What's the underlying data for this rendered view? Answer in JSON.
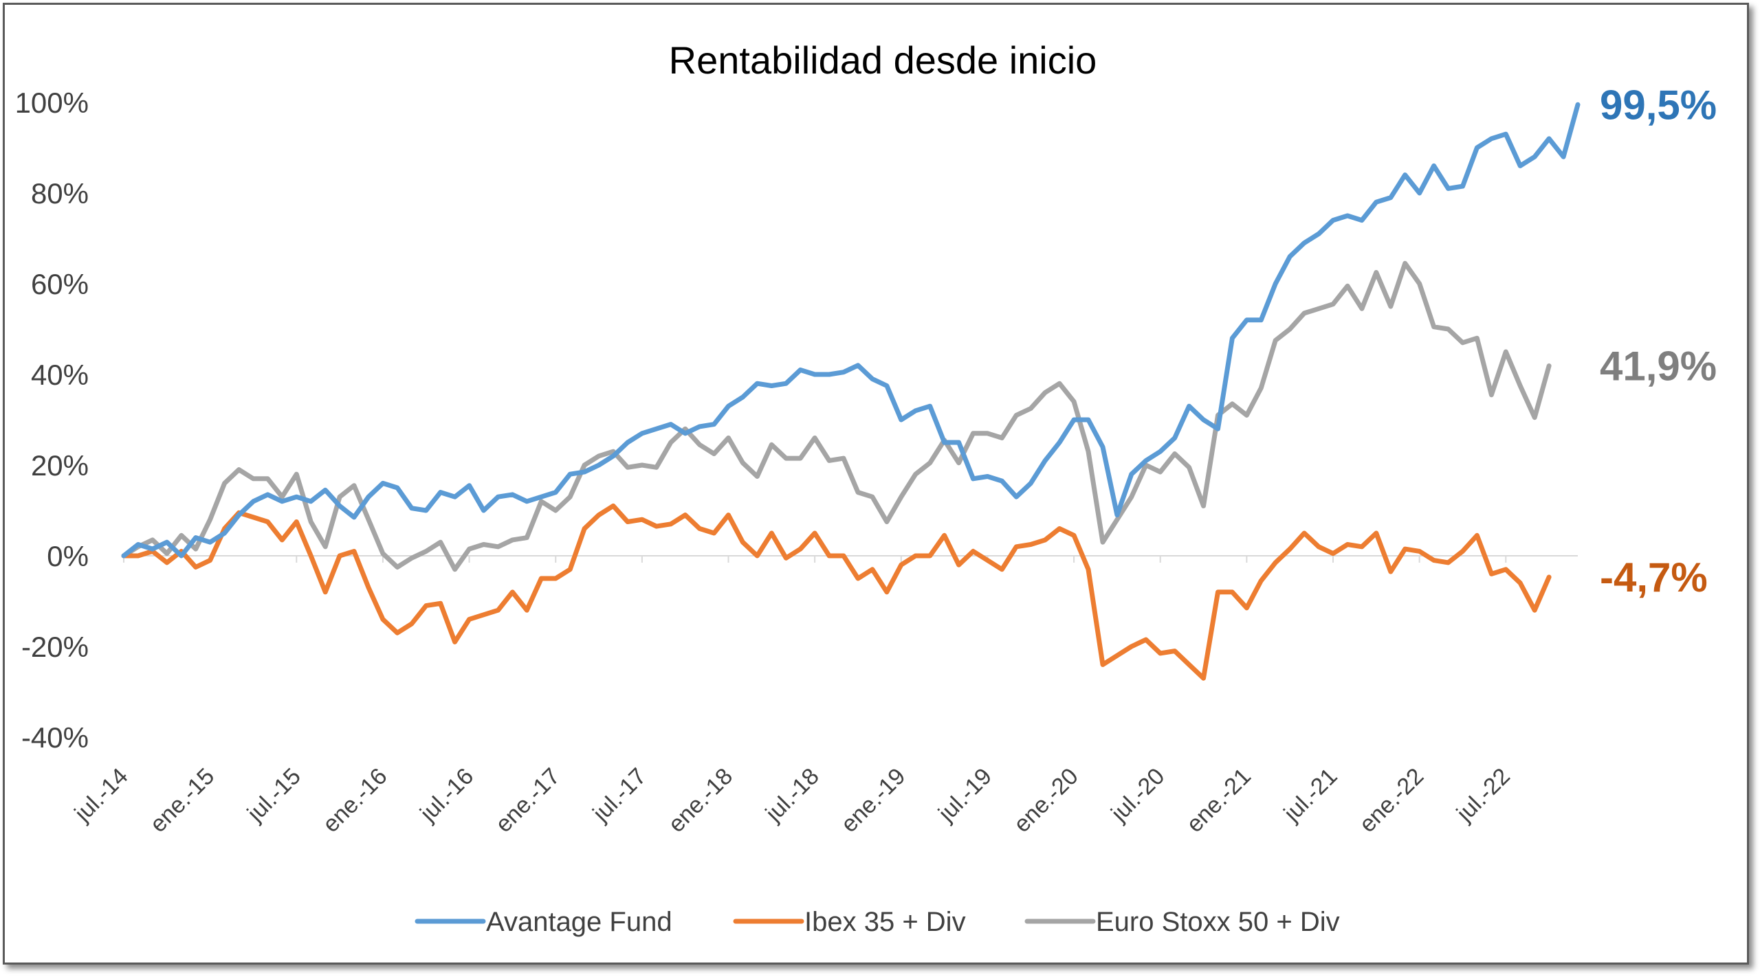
{
  "chart_data": {
    "type": "line",
    "title": "Rentabilidad desde inicio",
    "xlabel": "",
    "ylabel": "",
    "ylim": [
      -40,
      100
    ],
    "yticks": [
      100,
      80,
      60,
      40,
      20,
      0,
      -20,
      -40
    ],
    "ytick_labels": [
      "100%",
      "80%",
      "60%",
      "40%",
      "20%",
      "0%",
      "-20%",
      "-40%"
    ],
    "x_tick_labels": [
      "jul.-14",
      "ene.-15",
      "jul.-15",
      "ene.-16",
      "jul.-16",
      "ene.-17",
      "jul.-17",
      "ene.-18",
      "jul.-18",
      "ene.-19",
      "jul.-19",
      "ene.-20",
      "jul.-20",
      "ene.-21",
      "jul.-21",
      "ene.-22",
      "jul.-22"
    ],
    "x_start": "jul.-14",
    "x_end": "oct.-22",
    "grid": false,
    "zero_line": true,
    "legend_position": "bottom",
    "series": [
      {
        "name": "Avantage Fund",
        "color": "#5b9bd5",
        "end_label": "99,5%",
        "end_label_color": "#2e75b6",
        "values": [
          0,
          2.5,
          1.5,
          3,
          0,
          4,
          3,
          5,
          9,
          12,
          13.5,
          12,
          13,
          12,
          14.5,
          11,
          8.5,
          13,
          16,
          15,
          10.5,
          10,
          14,
          13,
          15.5,
          10,
          13,
          13.5,
          12,
          13,
          14,
          18,
          18.5,
          20,
          22,
          25,
          27,
          28,
          29,
          27,
          28.5,
          29,
          33,
          35,
          38,
          37.5,
          38,
          41,
          40,
          40,
          40.5,
          42,
          39,
          37.5,
          30,
          32,
          33,
          25,
          25,
          17,
          17.5,
          16.5,
          13,
          16,
          21,
          25,
          30,
          30,
          24,
          9,
          18,
          21,
          23,
          26,
          33,
          30,
          28,
          48,
          52,
          52,
          60,
          66,
          69,
          71,
          74,
          75,
          74,
          78,
          79,
          84,
          80,
          86,
          81,
          81.5,
          90,
          92,
          93,
          86,
          88,
          92,
          88,
          99.5
        ]
      },
      {
        "name": "Ibex 35 + Div",
        "color": "#ed7d31",
        "end_label": "-4,7%",
        "end_label_color": "#c55a11",
        "values": [
          0,
          0,
          1,
          -1.5,
          1,
          -2.5,
          -1,
          6,
          9.5,
          8.5,
          7.5,
          3.5,
          7.5,
          0,
          -8,
          0,
          1,
          -7,
          -14,
          -17,
          -15,
          -11,
          -10.5,
          -19,
          -14,
          -13,
          -12,
          -8,
          -12,
          -5,
          -5,
          -3,
          6,
          9,
          11,
          7.5,
          8,
          6.5,
          7,
          9,
          6,
          5,
          9,
          3,
          0,
          5,
          -0.5,
          1.5,
          5,
          0,
          0,
          -5,
          -3,
          -8,
          -2,
          0,
          0,
          4.5,
          -2,
          1,
          -1,
          -3,
          2,
          2.5,
          3.5,
          6,
          4.5,
          -3,
          -24,
          -22,
          -20,
          -18.5,
          -21.5,
          -21,
          -24,
          -27,
          -8,
          -8,
          -11.5,
          -5.5,
          -1.5,
          1.5,
          5,
          2,
          0.5,
          2.5,
          2,
          5,
          -3.5,
          1.5,
          1,
          -1,
          -1.5,
          1,
          4.5,
          -4,
          -3,
          -6,
          -12,
          -4.7
        ]
      },
      {
        "name": "Euro Stoxx 50 + Div",
        "color": "#a5a5a5",
        "end_label": "41,9%",
        "end_label_color": "#7f7f7f",
        "values": [
          0,
          2,
          3.5,
          0.5,
          4.5,
          1.5,
          8,
          16,
          19,
          17,
          17,
          13,
          18,
          7.5,
          2,
          13,
          15.5,
          8,
          0.5,
          -2.5,
          -0.5,
          1,
          3,
          -3,
          1.5,
          2.5,
          2,
          3.5,
          4,
          12,
          10,
          13,
          20,
          22,
          23,
          19.5,
          20,
          19.5,
          25,
          28,
          24.5,
          22.5,
          26,
          20.5,
          17.5,
          24.5,
          21.5,
          21.5,
          26,
          21,
          21.5,
          14,
          13,
          7.5,
          13,
          18,
          20.5,
          25.5,
          20.5,
          27,
          27,
          26,
          31,
          32.5,
          36,
          38,
          34,
          23,
          3,
          8,
          13,
          20,
          18.5,
          22.5,
          19.5,
          11,
          31,
          33.5,
          31,
          37,
          47.5,
          50,
          53.5,
          54.5,
          55.5,
          59.5,
          54.5,
          62.5,
          55,
          64.5,
          60,
          50.5,
          50,
          47,
          48,
          35.5,
          45,
          37.5,
          30.5,
          41.9
        ]
      }
    ]
  }
}
